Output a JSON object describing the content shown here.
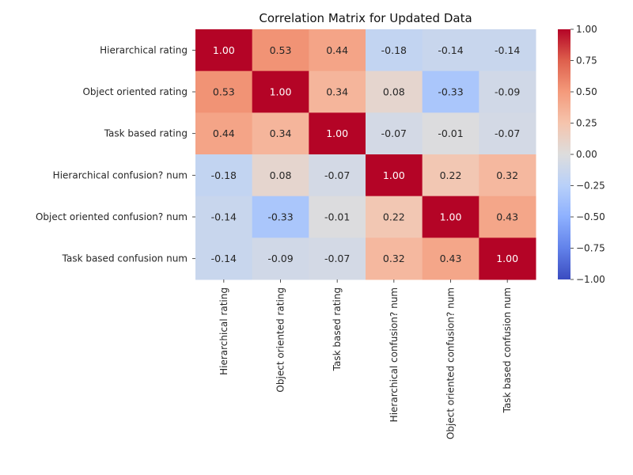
{
  "chart_data": {
    "type": "heatmap",
    "title": "Correlation Matrix for Updated Data",
    "rows": [
      "Hierarchical rating",
      "Object oriented rating",
      "Task based rating",
      "Hierarchical confusion? num",
      "Object oriented confusion? num",
      "Task based confusion num"
    ],
    "columns": [
      "Hierarchical rating",
      "Object oriented rating",
      "Task based rating",
      "Hierarchical confusion? num",
      "Object oriented confusion? num",
      "Task based confusion num"
    ],
    "values": [
      [
        1.0,
        0.53,
        0.44,
        -0.18,
        -0.14,
        -0.14
      ],
      [
        0.53,
        1.0,
        0.34,
        0.08,
        -0.33,
        -0.09
      ],
      [
        0.44,
        0.34,
        1.0,
        -0.07,
        -0.01,
        -0.07
      ],
      [
        -0.18,
        0.08,
        -0.07,
        1.0,
        0.22,
        0.32
      ],
      [
        -0.14,
        -0.33,
        -0.01,
        0.22,
        1.0,
        0.43
      ],
      [
        -0.14,
        -0.09,
        -0.07,
        0.32,
        0.43,
        1.0
      ]
    ],
    "annotation_format": "2 decimals",
    "colormap": "coolwarm",
    "vmin": -1.0,
    "vmax": 1.0,
    "colorbar": {
      "ticks": [
        1.0,
        0.75,
        0.5,
        0.25,
        0.0,
        -0.25,
        -0.5,
        -0.75,
        -1.0
      ],
      "tick_labels": [
        "1.00",
        "0.75",
        "0.50",
        "0.25",
        "0.00",
        "−0.25",
        "−0.50",
        "−0.75",
        "−1.00"
      ],
      "placement": "right"
    },
    "colors": {
      "low": "#3b4cc0",
      "mid": "#dddddd",
      "high": "#b40426"
    }
  }
}
